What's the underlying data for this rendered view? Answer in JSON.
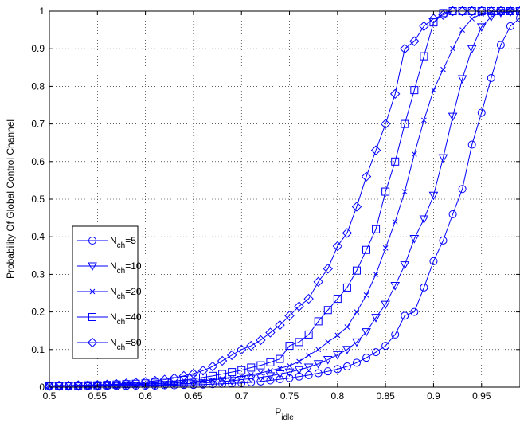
{
  "chart_data": {
    "type": "line",
    "title": "",
    "xlabel_main": "P",
    "xlabel_sub": "idle",
    "ylabel": "Probability Of Global Control Channel",
    "xlim": [
      0.5,
      0.99
    ],
    "ylim": [
      0,
      1
    ],
    "xticks": [
      0.5,
      0.55,
      0.6,
      0.65,
      0.7,
      0.75,
      0.8,
      0.85,
      0.9,
      0.95
    ],
    "xtick_labels": [
      "0.5",
      "0.55",
      "0.6",
      "0.65",
      "0.7",
      "0.75",
      "0.8",
      "0.85",
      "0.9",
      "0.95"
    ],
    "yticks": [
      0,
      0.1,
      0.2,
      0.3,
      0.4,
      0.5,
      0.6,
      0.7,
      0.8,
      0.9,
      1
    ],
    "ytick_labels": [
      "0",
      "0.1",
      "0.2",
      "0.3",
      "0.4",
      "0.5",
      "0.6",
      "0.7",
      "0.8",
      "0.9",
      "1"
    ],
    "grid": true,
    "grid_style": "dotted",
    "legend_position": "lower-left",
    "line_color": "#0000ff",
    "x": [
      0.5,
      0.51,
      0.52,
      0.53,
      0.54,
      0.55,
      0.56,
      0.57,
      0.58,
      0.59,
      0.6,
      0.61,
      0.62,
      0.63,
      0.64,
      0.65,
      0.66,
      0.67,
      0.68,
      0.69,
      0.7,
      0.71,
      0.72,
      0.73,
      0.74,
      0.75,
      0.76,
      0.77,
      0.78,
      0.79,
      0.8,
      0.81,
      0.82,
      0.83,
      0.84,
      0.85,
      0.86,
      0.87,
      0.88,
      0.89,
      0.9,
      0.91,
      0.92,
      0.93,
      0.94,
      0.95,
      0.96,
      0.97,
      0.98,
      0.99
    ],
    "series": [
      {
        "name_main": "N",
        "name_sub": "ch",
        "name_suffix": "=5",
        "marker": "circle",
        "values": [
          0.003,
          0.003,
          0.003,
          0.003,
          0.003,
          0.003,
          0.003,
          0.003,
          0.003,
          0.004,
          0.004,
          0.004,
          0.005,
          0.005,
          0.006,
          0.006,
          0.007,
          0.008,
          0.009,
          0.01,
          0.011,
          0.013,
          0.015,
          0.018,
          0.021,
          0.024,
          0.028,
          0.032,
          0.037,
          0.042,
          0.048,
          0.055,
          0.065,
          0.078,
          0.093,
          0.11,
          0.14,
          0.19,
          0.2,
          0.265,
          0.335,
          0.39,
          0.46,
          0.527,
          0.645,
          0.73,
          0.822,
          0.91,
          0.96,
          0.982
        ]
      },
      {
        "name_main": "N",
        "name_sub": "ch",
        "name_suffix": "=10",
        "marker": "triangle-down",
        "values": [
          0.003,
          0.003,
          0.003,
          0.003,
          0.003,
          0.003,
          0.004,
          0.004,
          0.004,
          0.005,
          0.005,
          0.006,
          0.007,
          0.008,
          0.009,
          0.01,
          0.011,
          0.013,
          0.015,
          0.017,
          0.02,
          0.023,
          0.026,
          0.03,
          0.035,
          0.04,
          0.046,
          0.053,
          0.062,
          0.073,
          0.086,
          0.1,
          0.12,
          0.147,
          0.185,
          0.22,
          0.27,
          0.325,
          0.395,
          0.447,
          0.51,
          0.61,
          0.72,
          0.82,
          0.9,
          0.958,
          0.985,
          0.996,
          0.998,
          1.0
        ]
      },
      {
        "name_main": "N",
        "name_sub": "ch",
        "name_suffix": "=20",
        "marker": "x",
        "values": [
          0.003,
          0.003,
          0.003,
          0.004,
          0.004,
          0.004,
          0.005,
          0.005,
          0.006,
          0.007,
          0.008,
          0.009,
          0.01,
          0.011,
          0.013,
          0.015,
          0.017,
          0.019,
          0.022,
          0.025,
          0.029,
          0.033,
          0.038,
          0.044,
          0.05,
          0.057,
          0.068,
          0.085,
          0.1,
          0.12,
          0.138,
          0.16,
          0.2,
          0.245,
          0.3,
          0.37,
          0.44,
          0.52,
          0.62,
          0.71,
          0.79,
          0.845,
          0.9,
          0.95,
          0.98,
          0.993,
          0.998,
          1.0,
          1.0,
          1.0
        ]
      },
      {
        "name_main": "N",
        "name_sub": "ch",
        "name_suffix": "=40",
        "marker": "square",
        "values": [
          0.003,
          0.004,
          0.004,
          0.004,
          0.005,
          0.005,
          0.006,
          0.007,
          0.008,
          0.009,
          0.01,
          0.012,
          0.014,
          0.016,
          0.019,
          0.022,
          0.026,
          0.03,
          0.035,
          0.04,
          0.045,
          0.052,
          0.058,
          0.066,
          0.075,
          0.11,
          0.12,
          0.14,
          0.175,
          0.205,
          0.235,
          0.265,
          0.31,
          0.365,
          0.42,
          0.52,
          0.6,
          0.7,
          0.79,
          0.88,
          0.97,
          0.995,
          1.0,
          1.0,
          1.0,
          1.0,
          1.0,
          1.0,
          1.0,
          1.0
        ]
      },
      {
        "name_main": "N",
        "name_sub": "ch",
        "name_suffix": "=80",
        "marker": "diamond",
        "values": [
          0.003,
          0.004,
          0.004,
          0.005,
          0.005,
          0.006,
          0.007,
          0.008,
          0.01,
          0.012,
          0.014,
          0.017,
          0.02,
          0.024,
          0.03,
          0.036,
          0.044,
          0.055,
          0.07,
          0.085,
          0.1,
          0.11,
          0.125,
          0.145,
          0.165,
          0.19,
          0.215,
          0.235,
          0.28,
          0.315,
          0.375,
          0.41,
          0.48,
          0.56,
          0.63,
          0.7,
          0.78,
          0.9,
          0.92,
          0.96,
          0.98,
          0.99,
          1.0,
          1.0,
          1.0,
          1.0,
          1.0,
          1.0,
          1.0,
          1.0
        ]
      }
    ]
  }
}
